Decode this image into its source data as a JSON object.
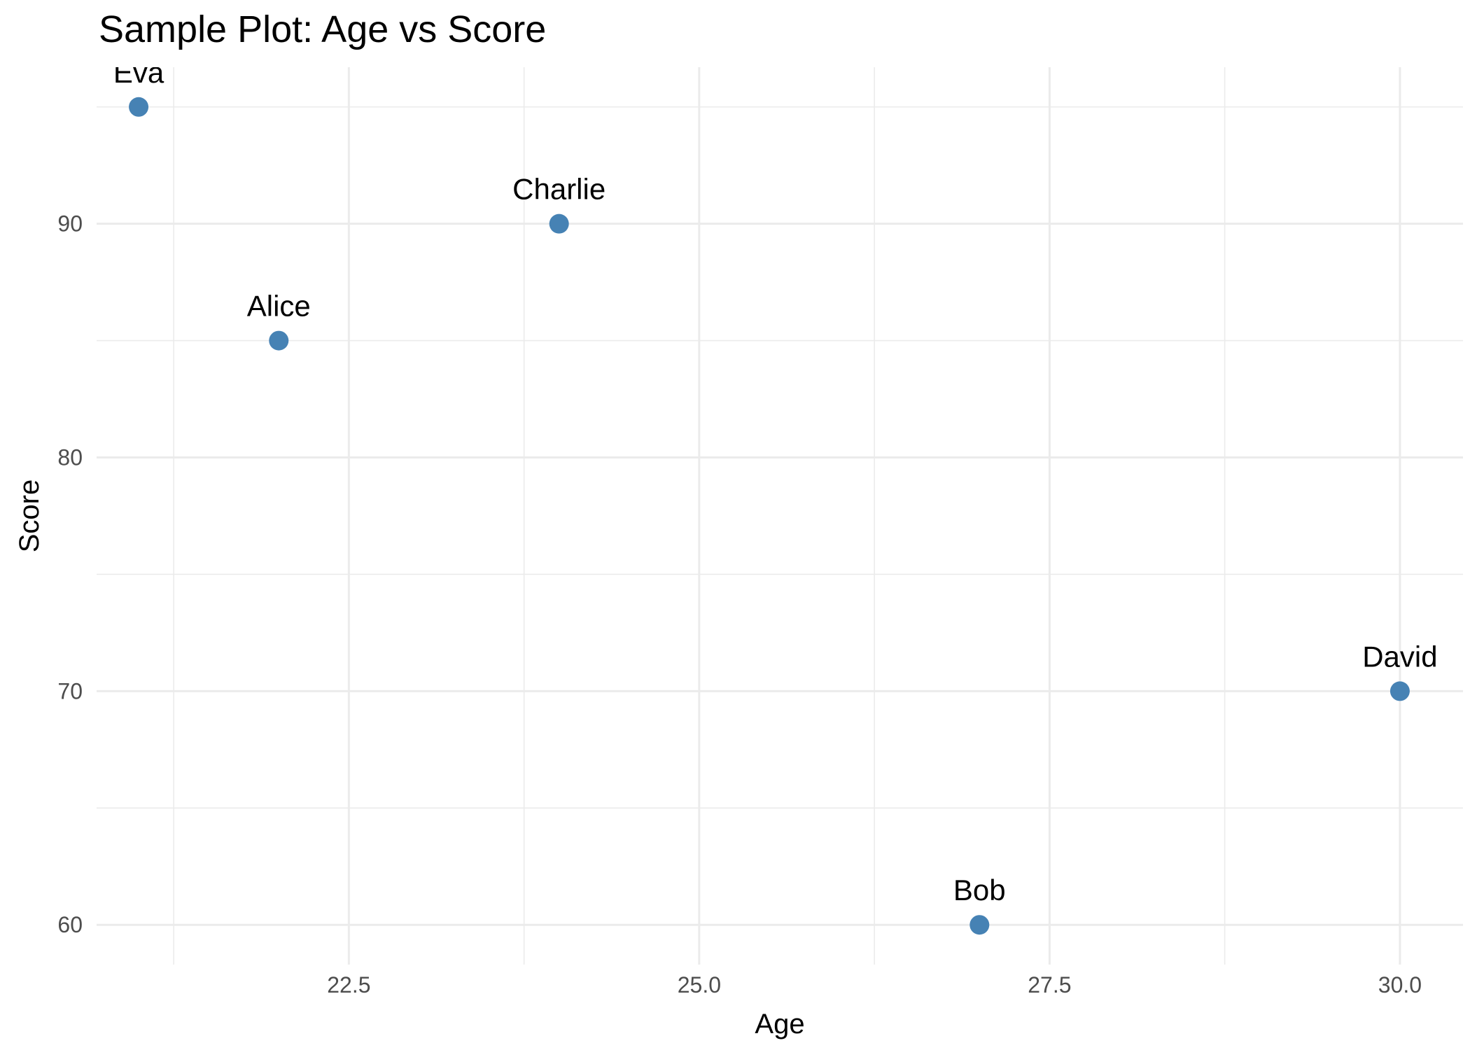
{
  "chart_data": {
    "type": "scatter",
    "title": "Sample Plot: Age vs Score",
    "xlabel": "Age",
    "ylabel": "Score",
    "xlim": [
      20.7,
      30.45
    ],
    "ylim": [
      58.3,
      96.7
    ],
    "x_ticks": [
      22.5,
      25.0,
      27.5,
      30.0
    ],
    "x_tick_labels": [
      "22.5",
      "25.0",
      "27.5",
      "30.0"
    ],
    "y_ticks": [
      60,
      70,
      80,
      90
    ],
    "y_tick_labels": [
      "60",
      "70",
      "80",
      "90"
    ],
    "grid": true,
    "point_color": "#4682b4",
    "points": [
      {
        "label": "Alice",
        "x": 22,
        "y": 85
      },
      {
        "label": "Bob",
        "x": 27,
        "y": 60
      },
      {
        "label": "Charlie",
        "x": 24,
        "y": 90
      },
      {
        "label": "David",
        "x": 30,
        "y": 70
      },
      {
        "label": "Eva",
        "x": 21,
        "y": 95
      }
    ]
  }
}
